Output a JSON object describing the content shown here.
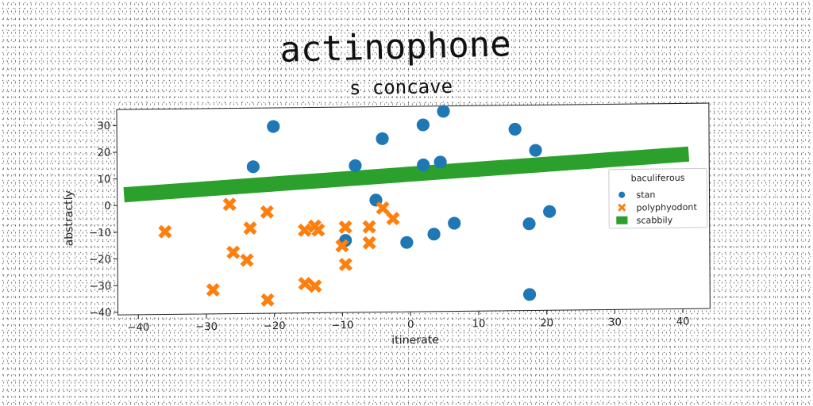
{
  "chart_data": {
    "type": "scatter",
    "title": "actinophone",
    "subtitle": "s concave",
    "xlabel": "itinerate",
    "ylabel": "abstractly",
    "xlim": [
      -43,
      44
    ],
    "ylim": [
      -41,
      36
    ],
    "xticks": [
      -40,
      -30,
      -20,
      -10,
      0,
      10,
      20,
      30,
      40
    ],
    "yticks": [
      -40,
      -30,
      -20,
      -10,
      0,
      10,
      20,
      30
    ],
    "grid": false,
    "legend": {
      "title": "baculiferous",
      "placement": "right"
    },
    "series": [
      {
        "name": "stan",
        "kind": "scatter",
        "marker": "circle",
        "color": "#1f77b4",
        "points": [
          [
            -20,
            29
          ],
          [
            -23,
            14
          ],
          [
            -8,
            14
          ],
          [
            -4,
            24
          ],
          [
            2,
            29
          ],
          [
            5,
            34
          ],
          [
            4.5,
            15
          ],
          [
            2,
            14
          ],
          [
            15.5,
            27
          ],
          [
            18.5,
            19
          ],
          [
            -5,
            1
          ],
          [
            -9.5,
            -14
          ],
          [
            -0.5,
            -15
          ],
          [
            3.5,
            -12
          ],
          [
            6.5,
            -8
          ],
          [
            17.5,
            -8.5
          ],
          [
            20.5,
            -4
          ],
          [
            17.5,
            -35
          ]
        ]
      },
      {
        "name": "polyphyodont",
        "kind": "scatter",
        "marker": "x",
        "color": "#ff7f0e",
        "points": [
          [
            -36,
            -10
          ],
          [
            -26.5,
            0
          ],
          [
            -21,
            -3
          ],
          [
            -23.5,
            -9
          ],
          [
            -26,
            -18
          ],
          [
            -24,
            -21
          ],
          [
            -29,
            -32
          ],
          [
            -21,
            -36
          ],
          [
            -15.5,
            -10
          ],
          [
            -14,
            -8.5
          ],
          [
            -13.5,
            -10
          ],
          [
            -9.5,
            -9
          ],
          [
            -10,
            -16
          ],
          [
            -9.5,
            -23
          ],
          [
            -6,
            -9
          ],
          [
            -6,
            -15
          ],
          [
            -4,
            -2
          ],
          [
            -2.5,
            -6
          ],
          [
            -15.5,
            -30
          ],
          [
            -14,
            -31
          ]
        ]
      },
      {
        "name": "scabbily",
        "kind": "line",
        "color": "#2ca02c",
        "points": [
          [
            -42,
            4
          ],
          [
            41,
            17
          ]
        ]
      }
    ]
  }
}
